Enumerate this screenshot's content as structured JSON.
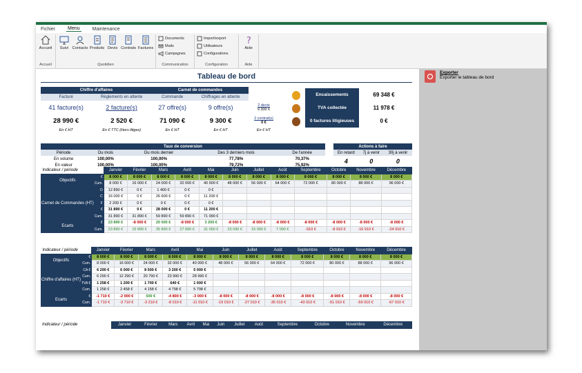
{
  "menu": {
    "tabs": [
      "Fichier",
      "Menu",
      "Maintenance"
    ]
  },
  "ribbon": {
    "accueil": {
      "btn": "Accueil",
      "label": "Accueil"
    },
    "quotidien": {
      "buttons": [
        "Suivi",
        "Contacts",
        "Produits",
        "Devis",
        "Contrats",
        "Factures"
      ],
      "label": "Quotidien"
    },
    "communication": {
      "buttons": [
        "Documents",
        "Mails",
        "Campagnes"
      ],
      "label": "Communication"
    },
    "configuration": {
      "buttons": [
        "Import/export",
        "Utilisateurs",
        "Configurations"
      ],
      "label": "Configuration"
    },
    "aide": {
      "btn": "Aide",
      "label": "Aide"
    }
  },
  "side": {
    "export_title": "Exporter",
    "export_desc": "Exporter le tableau de bord"
  },
  "sheet": {
    "title": "Tableau de bord",
    "ca": {
      "header_ca": "Chiffre d'affaires",
      "header_cmd": "Carnet de commandes",
      "sub": [
        "Facturé",
        "Règlements en attente",
        "Commande",
        "Chiffrages en attente"
      ],
      "links": [
        "41 facture(s)",
        "2 facture(s)",
        "27 offre(s)",
        "9 offre(s)"
      ],
      "side_devis": "2 devis",
      "side_devis_val": "9 300 €",
      "side_contrat": "2 contrat(s)",
      "side_contrat_val": "0 €",
      "values": [
        "28 990 €",
        "2 520 €",
        "71 090 €",
        "9 300 €"
      ],
      "notes": [
        "En € HT",
        "En € TTC (Hors litiges)",
        "En € HT",
        "En € HT",
        "En € HT"
      ]
    },
    "kpi": [
      {
        "label": "Encaissements",
        "value": "69 348 €"
      },
      {
        "label": "TVA collectée",
        "value": "11 978 €"
      },
      {
        "label": "0 factures litigieuses",
        "value": "0 €"
      }
    ],
    "taux": {
      "title": "Taux de conversion",
      "headers": [
        "Période",
        "Du mois",
        "Du mois dernier",
        "Des 3 derniers mois",
        "De l'année"
      ],
      "rows": [
        [
          "En volume",
          "100,00%",
          "100,00%",
          "77,78%",
          "70,37%"
        ],
        [
          "En valeur",
          "100,00%",
          "100,00%",
          "79,72%",
          "75,92%"
        ]
      ]
    },
    "actions": {
      "title": "Actions à faire",
      "headers": [
        "En retard",
        "7j à venir",
        "30j à venir"
      ],
      "values": [
        "4",
        "0",
        "0"
      ]
    },
    "months": [
      "Janvier",
      "Février",
      "Mars",
      "Avril",
      "Mai",
      "Juin",
      "Juillet",
      "Août",
      "Septembre",
      "Octobre",
      "Novembre",
      "Décembre"
    ],
    "indicator_label": "Indicateur / période",
    "t1": {
      "objectifs": "Objectifs",
      "obj_eur": [
        "8 000 €",
        "8 000 €",
        "8 000 €",
        "8 000 €",
        "8 000 €",
        "8 000 €",
        "8 000 €",
        "8 000 €",
        "8 000 €",
        "8 000 €",
        "8 000 €",
        "8 000 €"
      ],
      "obj_cum": [
        "8 000 €",
        "16 000 €",
        "24 000 €",
        "32 000 €",
        "40 000 €",
        "48 000 €",
        "56 000 €",
        "64 000 €",
        "72 000 €",
        "80 000 €",
        "88 000 €",
        "96 000 €"
      ],
      "main": "Carnet de Commandes (HT)",
      "row_d": [
        "12 890 €",
        "0 €",
        "1 400 €",
        "0 €",
        "0 €",
        "",
        "",
        "",
        "",
        "",
        "",
        ""
      ],
      "row_c": [
        "16 000 €",
        "0 €",
        "26 600 €",
        "0 €",
        "11 200 €",
        "",
        "",
        "",
        "",
        "",
        "",
        ""
      ],
      "row_f": [
        "2 200 €",
        "0 €",
        "0 €",
        "0 €",
        "0 €",
        "",
        "",
        "",
        "",
        "",
        "",
        ""
      ],
      "row_tot": [
        "31 890 €",
        "0 €",
        "28 000 €",
        "0 €",
        "11 200 €",
        "",
        "",
        "",
        "",
        "",
        "",
        ""
      ],
      "row_cum": [
        "31 890 €",
        "31 890 €",
        "59 890 €",
        "59 890 €",
        "71 090 €",
        "",
        "",
        "",
        "",
        "",
        "",
        ""
      ],
      "ecarts": "Ecarts",
      "ec_eur": [
        "23 890 €",
        "-8 000 €",
        "20 000 €",
        "-8 000 €",
        "3 200 €",
        "-8 000 €",
        "-8 000 €",
        "-8 000 €",
        "-8 000 €",
        "-8 000 €",
        "-8 000 €",
        "-8 000 €"
      ],
      "ec_cum": [
        "23 890 €",
        "15 890 €",
        "35 890 €",
        "27 890 €",
        "31 090 €",
        "23 090 €",
        "15 090 €",
        "7 090 €",
        "-910 €",
        "-8 910 €",
        "-16 910 €",
        "-24 910 €"
      ],
      "sub_labels": [
        "€",
        "Cum.",
        "D",
        "C",
        "F",
        "€",
        "Cum.",
        "€",
        "Cum."
      ]
    },
    "t2": {
      "objectifs": "Objectifs",
      "obj_eur": [
        "8 000 €",
        "8 000 €",
        "8 000 €",
        "8 000 €",
        "8 000 €",
        "8 000 €",
        "8 000 €",
        "8 000 €",
        "8 000 €",
        "8 000 €",
        "8 000 €",
        "8 000 €"
      ],
      "obj_cum": [
        "8 000 €",
        "16 000 €",
        "24 000 €",
        "32 000 €",
        "40 000 €",
        "48 000 €",
        "56 000 €",
        "64 000 €",
        "72 000 €",
        "80 000 €",
        "88 000 €",
        "96 000 €"
      ],
      "main": "Chiffre d'affaires (HT)",
      "row_ca": [
        "6 290 €",
        "6 000 €",
        "8 500 €",
        "3 200 €",
        "5 000 €",
        "",
        "",
        "",
        "",
        "",
        "",
        ""
      ],
      "row_cum": [
        "6 290 €",
        "12 290 €",
        "20 790 €",
        "23 990 €",
        "28 990 €",
        "",
        "",
        "",
        "",
        "",
        "",
        ""
      ],
      "row_tva": [
        "1 258 €",
        "1 200 €",
        "1 700 €",
        "640 €",
        "1 000 €",
        "",
        "",
        "",
        "",
        "",
        "",
        ""
      ],
      "row_tvacum": [
        "1 258 €",
        "2 458 €",
        "4 158 €",
        "4 798 €",
        "5 798 €",
        "",
        "",
        "",
        "",
        "",
        "",
        ""
      ],
      "ecarts": "Ecarts",
      "ec_eur": [
        "-1 710 €",
        "-2 000 €",
        "500 €",
        "-4 800 €",
        "-3 000 €",
        "-8 000 €",
        "-8 000 €",
        "-8 000 €",
        "-8 000 €",
        "-8 000 €",
        "-8 000 €",
        "-8 000 €"
      ],
      "ec_cum": [
        "-1 710 €",
        "-3 710 €",
        "-3 210 €",
        "-8 010 €",
        "-11 010 €",
        "-19 010 €",
        "-27 010 €",
        "-35 010 €",
        "-43 010 €",
        "-51 010 €",
        "-59 010 €",
        "-67 010 €"
      ],
      "sub_labels": [
        "€",
        "Cum.",
        "CA €",
        "Cum.",
        "TVA €",
        "Cum.",
        "€",
        "Cum."
      ]
    }
  }
}
